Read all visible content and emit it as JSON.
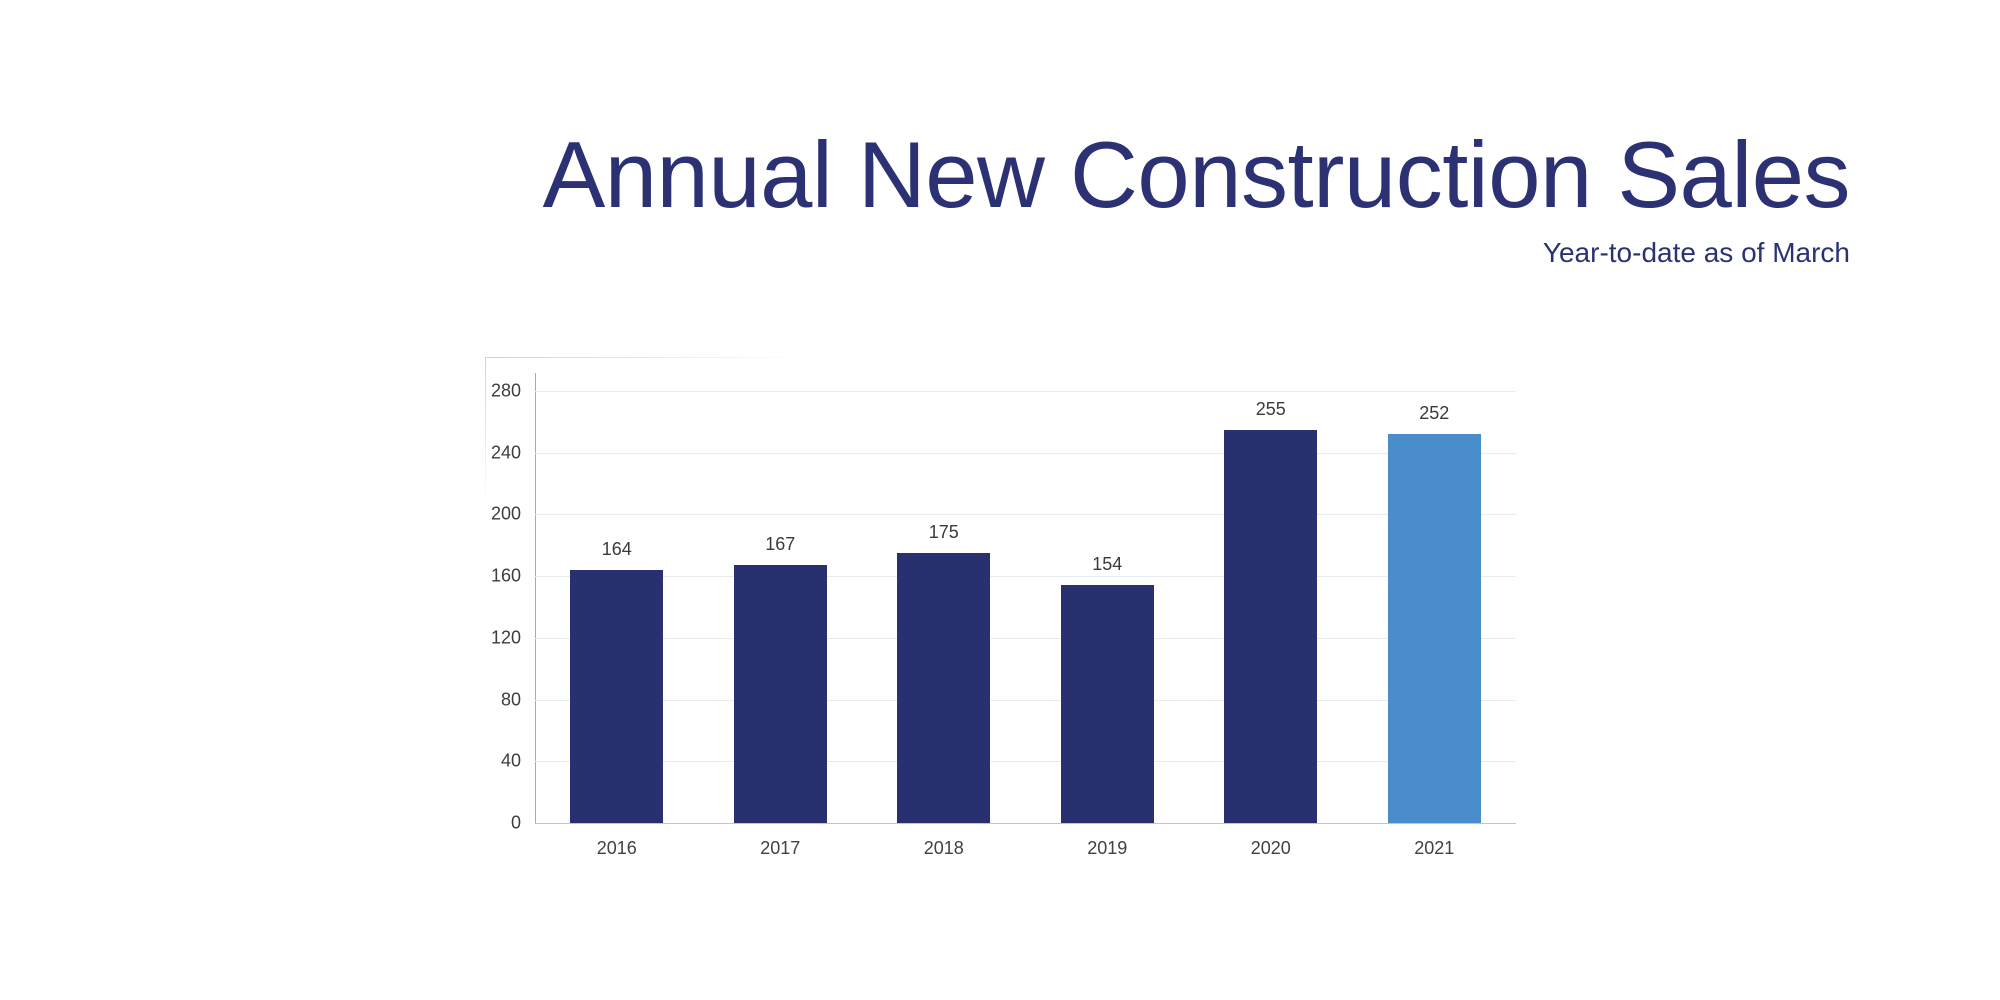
{
  "header": {
    "title": "Annual New Construction Sales",
    "subtitle": "Year-to-date as of March",
    "title_color": "#2b3173"
  },
  "chart_data": {
    "type": "bar",
    "title": "Annual New Construction Sales",
    "subtitle": "Year-to-date as of March",
    "categories": [
      "2016",
      "2017",
      "2018",
      "2019",
      "2020",
      "2021"
    ],
    "values": [
      164,
      167,
      175,
      154,
      255,
      252
    ],
    "value_labels": [
      "164",
      "167",
      "175",
      "154",
      "255",
      "252"
    ],
    "highlight_index": 5,
    "ylim": [
      0,
      280
    ],
    "yticks": [
      0,
      40,
      80,
      120,
      160,
      200,
      240,
      280
    ],
    "grid": true,
    "legend": "none",
    "xlabel": "",
    "ylabel": "",
    "colors": {
      "bar": "#293070",
      "bar_highlight": "#4a8dcb",
      "gridline": "#e8ebf2",
      "axis_line": "#a9a9a9",
      "baseline": "#c3c3c3",
      "tick_text": "#3d3d3d",
      "value_text": "#3a3a3a"
    }
  }
}
